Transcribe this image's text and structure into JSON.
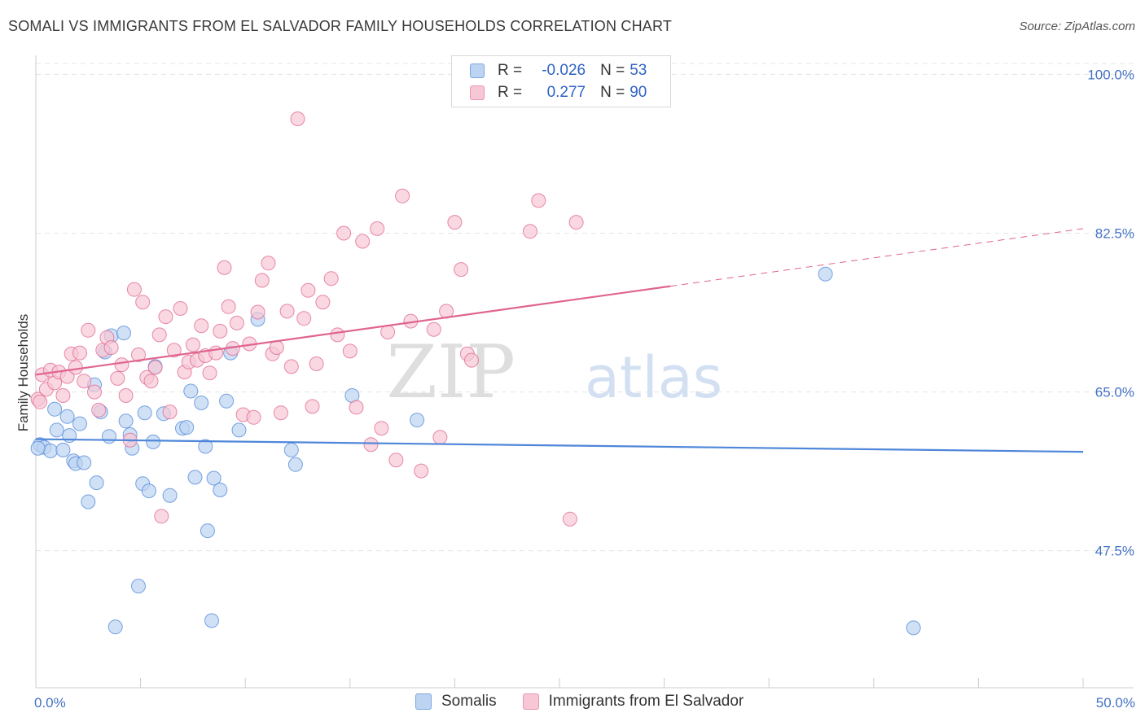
{
  "header": {
    "title": "SOMALI VS IMMIGRANTS FROM EL SALVADOR FAMILY HOUSEHOLDS CORRELATION CHART",
    "source": "Source: ZipAtlas.com"
  },
  "watermark": {
    "zip": "ZIP",
    "atlas": "atlas"
  },
  "legend": {
    "rows": [
      {
        "r_label": "R =",
        "r_value": "-0.026",
        "n_label": "N =",
        "n_value": "53",
        "color": "#7aa6e0",
        "fill": "#bcd4f2"
      },
      {
        "r_label": "R =",
        "r_value": "0.277",
        "n_label": "N =",
        "n_value": "90",
        "color": "#e896b0",
        "fill": "#f7c7d6"
      }
    ]
  },
  "bottom_legend": [
    {
      "label": "Somalis",
      "color": "#7aa6e0",
      "fill": "#bcd4f2"
    },
    {
      "label": "Immigrants from El Salvador",
      "color": "#e896b0",
      "fill": "#f7c7d6"
    }
  ],
  "chart_data": {
    "type": "scatter",
    "title": "SOMALI VS IMMIGRANTS FROM EL SALVADOR FAMILY HOUSEHOLDS CORRELATION CHART",
    "xlabel": "",
    "ylabel": "Family Households",
    "xlim": [
      0,
      50
    ],
    "ylim": [
      32.4,
      102.1
    ],
    "y_ticks": [
      47.5,
      65.0,
      82.5,
      100.0
    ],
    "y_tick_labels": [
      "47.5%",
      "65.0%",
      "82.5%",
      "100.0%"
    ],
    "x_tick_labels": [
      "0.0%",
      "50.0%"
    ],
    "x_tick_label_values": [
      0,
      50
    ],
    "grid": "horizontal dashed",
    "legend_placement": "top-center",
    "series": [
      {
        "name": "Somalis",
        "color": "#4f86d9",
        "fill": "#bcd4f2",
        "trend": {
          "x": [
            0,
            50
          ],
          "y": [
            59.8,
            58.4
          ],
          "dashed_from": null
        },
        "points": [
          [
            0.2,
            59.2
          ],
          [
            0.4,
            58.9
          ],
          [
            0.7,
            58.5
          ],
          [
            0.9,
            63.1
          ],
          [
            1.0,
            60.8
          ],
          [
            1.3,
            58.6
          ],
          [
            1.5,
            62.3
          ],
          [
            1.6,
            60.2
          ],
          [
            1.8,
            57.4
          ],
          [
            1.9,
            57.1
          ],
          [
            2.1,
            61.5
          ],
          [
            2.3,
            57.2
          ],
          [
            2.5,
            52.9
          ],
          [
            2.8,
            65.8
          ],
          [
            2.9,
            55.0
          ],
          [
            3.1,
            62.8
          ],
          [
            3.3,
            69.4
          ],
          [
            3.5,
            60.1
          ],
          [
            3.6,
            71.2
          ],
          [
            4.2,
            71.5
          ],
          [
            4.3,
            61.8
          ],
          [
            4.5,
            60.3
          ],
          [
            4.6,
            58.8
          ],
          [
            4.9,
            43.6
          ],
          [
            5.1,
            54.9
          ],
          [
            5.2,
            62.7
          ],
          [
            5.4,
            54.1
          ],
          [
            5.6,
            59.5
          ],
          [
            5.7,
            67.8
          ],
          [
            6.1,
            62.6
          ],
          [
            6.4,
            53.6
          ],
          [
            7.0,
            61.0
          ],
          [
            7.2,
            61.1
          ],
          [
            7.4,
            65.1
          ],
          [
            7.6,
            55.6
          ],
          [
            7.9,
            63.8
          ],
          [
            8.1,
            59.0
          ],
          [
            8.2,
            49.7
          ],
          [
            8.5,
            55.5
          ],
          [
            8.8,
            54.2
          ],
          [
            9.1,
            64.0
          ],
          [
            9.3,
            69.3
          ],
          [
            9.7,
            60.8
          ],
          [
            10.6,
            73.0
          ],
          [
            12.2,
            58.6
          ],
          [
            12.4,
            57.0
          ],
          [
            15.1,
            64.6
          ],
          [
            18.2,
            61.9
          ],
          [
            3.8,
            39.1
          ],
          [
            8.4,
            39.8
          ],
          [
            37.7,
            78.0
          ],
          [
            41.9,
            39.0
          ],
          [
            0.1,
            58.8
          ]
        ]
      },
      {
        "name": "Immigrants from El Salvador",
        "color": "#e0648f",
        "fill": "#f7c7d6",
        "trend": {
          "x": [
            0,
            50
          ],
          "y": [
            66.9,
            83.0
          ],
          "dashed_from": 30.3
        },
        "points": [
          [
            0.1,
            64.2
          ],
          [
            0.3,
            66.9
          ],
          [
            0.5,
            65.3
          ],
          [
            0.7,
            67.4
          ],
          [
            0.9,
            66.0
          ],
          [
            1.1,
            67.2
          ],
          [
            1.3,
            64.6
          ],
          [
            1.5,
            66.7
          ],
          [
            1.7,
            69.2
          ],
          [
            1.9,
            67.7
          ],
          [
            2.1,
            69.3
          ],
          [
            2.3,
            66.2
          ],
          [
            2.5,
            71.8
          ],
          [
            2.8,
            65.0
          ],
          [
            3.0,
            63.0
          ],
          [
            3.2,
            69.6
          ],
          [
            3.4,
            71.0
          ],
          [
            3.6,
            69.9
          ],
          [
            3.9,
            66.5
          ],
          [
            4.1,
            68.0
          ],
          [
            4.3,
            64.6
          ],
          [
            4.5,
            59.7
          ],
          [
            4.7,
            76.3
          ],
          [
            4.9,
            69.1
          ],
          [
            5.1,
            74.9
          ],
          [
            5.3,
            66.6
          ],
          [
            5.5,
            66.2
          ],
          [
            5.7,
            67.7
          ],
          [
            5.9,
            71.3
          ],
          [
            6.2,
            73.3
          ],
          [
            6.4,
            62.8
          ],
          [
            6.6,
            69.6
          ],
          [
            6.9,
            74.2
          ],
          [
            7.1,
            67.2
          ],
          [
            7.3,
            68.3
          ],
          [
            7.5,
            70.2
          ],
          [
            7.7,
            68.5
          ],
          [
            7.9,
            72.3
          ],
          [
            8.1,
            69.0
          ],
          [
            8.3,
            67.1
          ],
          [
            8.6,
            69.3
          ],
          [
            8.8,
            71.7
          ],
          [
            9.0,
            78.7
          ],
          [
            9.2,
            74.4
          ],
          [
            9.4,
            69.8
          ],
          [
            9.6,
            72.6
          ],
          [
            9.9,
            62.5
          ],
          [
            10.2,
            70.3
          ],
          [
            10.4,
            62.2
          ],
          [
            10.6,
            73.8
          ],
          [
            10.8,
            77.3
          ],
          [
            11.1,
            79.2
          ],
          [
            11.3,
            69.2
          ],
          [
            11.5,
            69.9
          ],
          [
            11.7,
            62.7
          ],
          [
            12.0,
            73.9
          ],
          [
            12.2,
            67.8
          ],
          [
            12.5,
            95.1
          ],
          [
            12.8,
            73.1
          ],
          [
            13.0,
            76.2
          ],
          [
            13.2,
            63.4
          ],
          [
            13.4,
            68.1
          ],
          [
            13.7,
            74.9
          ],
          [
            14.1,
            77.5
          ],
          [
            14.4,
            71.3
          ],
          [
            14.7,
            82.5
          ],
          [
            15.0,
            69.5
          ],
          [
            15.3,
            63.3
          ],
          [
            15.6,
            81.6
          ],
          [
            16.0,
            59.2
          ],
          [
            16.3,
            83.0
          ],
          [
            16.5,
            61.0
          ],
          [
            16.8,
            71.6
          ],
          [
            17.2,
            57.5
          ],
          [
            17.5,
            86.6
          ],
          [
            17.9,
            72.8
          ],
          [
            18.4,
            56.3
          ],
          [
            19.0,
            71.9
          ],
          [
            19.3,
            60.0
          ],
          [
            19.6,
            73.9
          ],
          [
            20.0,
            83.7
          ],
          [
            20.3,
            78.5
          ],
          [
            20.6,
            69.2
          ],
          [
            20.8,
            68.5
          ],
          [
            23.6,
            82.7
          ],
          [
            24.0,
            86.1
          ],
          [
            25.8,
            83.7
          ],
          [
            25.5,
            51.0
          ],
          [
            6.0,
            51.3
          ],
          [
            0.2,
            63.9
          ]
        ]
      }
    ]
  }
}
